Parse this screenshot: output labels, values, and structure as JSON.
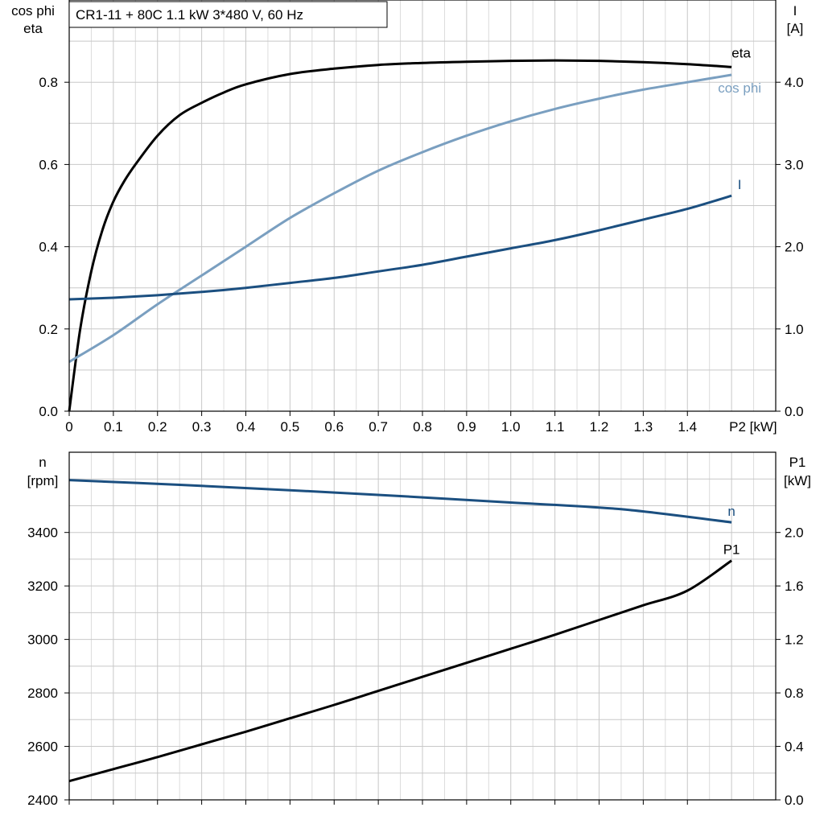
{
  "chart_data": [
    {
      "type": "line",
      "title": "CR1-11 + 80C   1.1 kW   3*480 V, 60 Hz",
      "x_label": "P2 [kW]",
      "x_tick_labels": [
        "0",
        "0.1",
        "0.2",
        "0.3",
        "0.4",
        "0.5",
        "0.6",
        "0.7",
        "0.8",
        "0.9",
        "1.0",
        "1.1",
        "1.2",
        "1.3",
        "1.4",
        "P2 [kW]"
      ],
      "x_ticks": [
        0,
        0.1,
        0.2,
        0.3,
        0.4,
        0.5,
        0.6,
        0.7,
        0.8,
        0.9,
        1.0,
        1.1,
        1.2,
        1.3,
        1.4
      ],
      "xlim": [
        0,
        1.6
      ],
      "y_left_label_lines": [
        "cos phi",
        "eta"
      ],
      "y_left_ticks": [
        "0.0",
        "0.2",
        "0.4",
        "0.6",
        "0.8"
      ],
      "y_left_lim": [
        0,
        1.0
      ],
      "y_right_label_lines": [
        "I",
        "[A]"
      ],
      "y_right_ticks": [
        "0.0",
        "1.0",
        "2.0",
        "3.0",
        "4.0"
      ],
      "y_right_lim": [
        0,
        5.0
      ],
      "grid": true,
      "series": [
        {
          "name": "eta",
          "axis": "left",
          "color": "#000000",
          "x": [
            0,
            0.025,
            0.05,
            0.075,
            0.1,
            0.125,
            0.15,
            0.2,
            0.25,
            0.3,
            0.35,
            0.4,
            0.5,
            0.6,
            0.7,
            0.8,
            0.9,
            1.0,
            1.1,
            1.2,
            1.3,
            1.4,
            1.5
          ],
          "y": [
            0,
            0.2,
            0.34,
            0.44,
            0.51,
            0.56,
            0.6,
            0.67,
            0.72,
            0.75,
            0.775,
            0.795,
            0.82,
            0.833,
            0.842,
            0.847,
            0.85,
            0.852,
            0.853,
            0.852,
            0.849,
            0.844,
            0.837
          ]
        },
        {
          "name": "cos phi",
          "axis": "left",
          "color": "#7a9fc0",
          "x": [
            0,
            0.1,
            0.2,
            0.3,
            0.4,
            0.5,
            0.6,
            0.7,
            0.8,
            0.9,
            1.0,
            1.1,
            1.2,
            1.3,
            1.4,
            1.5
          ],
          "y": [
            0.12,
            0.185,
            0.26,
            0.33,
            0.4,
            0.47,
            0.53,
            0.585,
            0.63,
            0.67,
            0.705,
            0.735,
            0.76,
            0.782,
            0.8,
            0.818
          ]
        },
        {
          "name": "I",
          "axis": "right",
          "color": "#1b4f80",
          "x": [
            0,
            0.1,
            0.2,
            0.3,
            0.4,
            0.5,
            0.6,
            0.7,
            0.8,
            0.9,
            1.0,
            1.1,
            1.2,
            1.3,
            1.4,
            1.5
          ],
          "y": [
            1.36,
            1.38,
            1.41,
            1.45,
            1.5,
            1.56,
            1.62,
            1.7,
            1.78,
            1.88,
            1.98,
            2.08,
            2.2,
            2.33,
            2.46,
            2.62
          ]
        }
      ]
    },
    {
      "type": "line",
      "title": "",
      "xlim": [
        0,
        1.6
      ],
      "x_ticks": [
        0,
        0.1,
        0.2,
        0.3,
        0.4,
        0.5,
        0.6,
        0.7,
        0.8,
        0.9,
        1.0,
        1.1,
        1.2,
        1.3,
        1.4
      ],
      "y_left_label_lines": [
        "n",
        "[rpm]"
      ],
      "y_left_ticks": [
        "2400",
        "2600",
        "2800",
        "3000",
        "3200",
        "3400"
      ],
      "y_left_lim": [
        2400,
        3700
      ],
      "y_right_label_lines": [
        "P1",
        "[kW]"
      ],
      "y_right_ticks": [
        "0.0",
        "0.4",
        "0.8",
        "1.2",
        "1.6",
        "2.0"
      ],
      "y_right_lim": [
        0,
        2.6
      ],
      "grid": true,
      "series": [
        {
          "name": "n",
          "axis": "left",
          "color": "#1b4f80",
          "x": [
            0,
            0.25,
            0.5,
            0.75,
            1.0,
            1.25,
            1.5
          ],
          "y": [
            3596,
            3578,
            3558,
            3536,
            3512,
            3487,
            3438
          ]
        },
        {
          "name": "P1",
          "axis": "right",
          "color": "#000000",
          "x": [
            0,
            0.1,
            0.2,
            0.3,
            0.4,
            0.5,
            0.6,
            0.7,
            0.8,
            0.9,
            1.0,
            1.1,
            1.2,
            1.3,
            1.4,
            1.5
          ],
          "y": [
            0.14,
            0.23,
            0.32,
            0.415,
            0.51,
            0.61,
            0.71,
            0.815,
            0.92,
            1.025,
            1.13,
            1.235,
            1.345,
            1.455,
            1.565,
            1.79
          ]
        }
      ]
    }
  ]
}
